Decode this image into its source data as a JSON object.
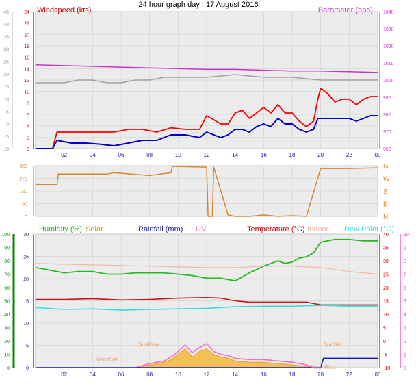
{
  "title": "24 hour graph day : 17 August 2016",
  "colors": {
    "wind_avg": "#0000cc",
    "wind_gust": "#ff0000",
    "baro": "#cc33cc",
    "grey": "#a0a0a0",
    "dir": "#d8862e",
    "humidity": "#22bb22",
    "solar": "#c0a000",
    "rainfall": "#1a1aaa",
    "uv": "#ff66cc",
    "temperature": "#cc1111",
    "indoor": "#f0b8a0",
    "dew": "#33dddd",
    "hum_axis": "#008800",
    "uv_axis": "#ff3399",
    "temp_axis": "#cc0000",
    "plot_bg": "#ececec",
    "grid": "#d4d4d4"
  },
  "x_ticks": [
    "02",
    "04",
    "06",
    "08",
    "10",
    "12",
    "14",
    "16",
    "18",
    "20",
    "22",
    "00"
  ],
  "chart_data": [
    {
      "type": "line",
      "panel": "wind",
      "title": "24 hour graph day : 17 August 2016",
      "left_label": "Windspeed (kts)",
      "right_label": "Barometer (hpa)",
      "outer_left_ticks": [
        "45",
        "40",
        "35",
        "30",
        "25",
        "20",
        "15",
        "10",
        "5",
        "0",
        "-5",
        "-10"
      ],
      "left_ticks": [
        "24",
        "22",
        "20",
        "18",
        "16",
        "14",
        "12",
        "10",
        "8",
        "6",
        "4",
        "2",
        "0"
      ],
      "right_ticks": [
        "1040",
        "1030",
        "1020",
        "1010",
        "1000",
        "990",
        "980",
        "970",
        "960"
      ],
      "left_ylim": [
        0,
        25
      ],
      "right_ylim": [
        958,
        1048
      ],
      "series": [
        {
          "name": "Windspeed (kts)",
          "axis": "left",
          "color": "wind_gust",
          "x": [
            0,
            1.2,
            1.5,
            2.5,
            3.5,
            4.5,
            5.5,
            6.5,
            7.5,
            8.5,
            9.5,
            10.5,
            11.5,
            12,
            13,
            13.5,
            14,
            14.5,
            15,
            15.5,
            16,
            16.5,
            17,
            17.5,
            18,
            18.5,
            19,
            19.5,
            19.8,
            20,
            20.5,
            21,
            21.5,
            22,
            22.5,
            23,
            23.5,
            24
          ],
          "y": [
            0,
            0,
            3,
            3,
            3,
            3,
            3,
            3.5,
            3.5,
            3,
            3.8,
            3.5,
            3.5,
            6,
            4.5,
            4.5,
            6.5,
            7,
            5.5,
            6.5,
            7.5,
            6.5,
            8,
            6.5,
            6.5,
            5,
            4,
            5,
            9,
            11,
            10,
            8.5,
            9,
            9,
            8,
            9,
            9.5,
            9.5
          ]
        },
        {
          "name": "Windspeed (kts)",
          "axis": "left",
          "color": "wind_avg",
          "x": [
            0,
            1.2,
            1.5,
            2.5,
            3.5,
            4.5,
            5.5,
            6.5,
            7.5,
            8.5,
            9.5,
            10.5,
            11.5,
            12,
            13,
            13.5,
            14,
            14.5,
            15,
            15.5,
            16,
            16.5,
            17,
            17.5,
            18,
            18.5,
            19,
            19.5,
            19.8,
            20,
            20.5,
            21,
            21.5,
            22,
            22.5,
            23,
            23.5,
            24
          ],
          "y": [
            0,
            0,
            1.5,
            1,
            1,
            0.8,
            0.5,
            1,
            1.5,
            1.5,
            2.5,
            2.5,
            2,
            3,
            2,
            2.5,
            3.5,
            3.5,
            3,
            4,
            4.5,
            4,
            5.5,
            4.5,
            4.5,
            3.5,
            3,
            3.5,
            5.5,
            5.5,
            5.5,
            5.5,
            5.5,
            5.5,
            5,
            5.5,
            6,
            6
          ]
        },
        {
          "name": "Barometer (hpa)",
          "axis": "right",
          "color": "baro",
          "x": [
            0,
            2,
            4,
            6,
            8,
            10,
            12,
            14,
            16,
            18,
            20,
            22,
            24
          ],
          "y": [
            1013,
            1012.5,
            1012,
            1011.5,
            1011,
            1010.5,
            1010,
            1010,
            1009.5,
            1009,
            1009,
            1008.5,
            1008
          ]
        },
        {
          "name": "",
          "axis": "left",
          "color": "grey",
          "x": [
            0,
            2,
            3,
            4,
            5,
            6,
            7,
            8,
            9,
            10,
            12,
            14,
            16,
            18,
            20,
            22,
            24
          ],
          "y": [
            12,
            12,
            12.5,
            12.5,
            12,
            12,
            12.5,
            12.5,
            13,
            13,
            13,
            13.5,
            13,
            13,
            12.5,
            12.5,
            12.5
          ]
        }
      ]
    },
    {
      "type": "line",
      "panel": "direction",
      "ticks": [
        "360",
        "270",
        "180",
        "90",
        "0"
      ],
      "right_letters": [
        "N",
        "W",
        "S",
        "E",
        "N"
      ],
      "ylim": [
        0,
        360
      ],
      "series": [
        {
          "name": "",
          "color": "dir",
          "x": [
            0,
            1.5,
            1.6,
            5,
            5.5,
            8,
            9.5,
            9.6,
            12,
            12.1,
            12.4,
            12.5,
            13.5,
            14,
            15,
            16,
            17,
            18,
            19,
            20,
            22,
            24
          ],
          "y": [
            225,
            225,
            300,
            300,
            310,
            290,
            310,
            355,
            350,
            0,
            0,
            350,
            10,
            0,
            0,
            10,
            0,
            5,
            0,
            340,
            340,
            345
          ]
        }
      ]
    },
    {
      "type": "line",
      "panel": "multi",
      "legend": [
        "Humidity (%)",
        "Solar",
        "Rainfall (mm)",
        "UV",
        "Temperature (°C)",
        "Indoor",
        "Dew Point (°C)"
      ],
      "hum_ticks": [
        "100",
        "90",
        "80",
        "70",
        "60",
        "50",
        "40",
        "30",
        "20",
        "10",
        "0"
      ],
      "rain_ticks": [
        "30",
        "25",
        "20",
        "15",
        "10",
        "5",
        "0"
      ],
      "temp_ticks": [
        "40",
        "35",
        "30",
        "25",
        "20",
        "15",
        "10",
        "5",
        "0",
        "-5",
        "-10"
      ],
      "uv_ticks": [
        "10",
        "9",
        "8",
        "7",
        "6",
        "5",
        "4",
        "3",
        "2",
        "1",
        "0"
      ],
      "hum_ylim": [
        0,
        100
      ],
      "temp_ylim": [
        -10,
        40
      ],
      "annotations": [
        {
          "text": "SunRise",
          "x": 7.2,
          "y": -2
        },
        {
          "text": "MoonSet",
          "x": 4.2,
          "y": -7.5
        },
        {
          "text": "SunSet",
          "x": 20.2,
          "y": -2
        },
        {
          "text": "MoonRise",
          "x": 19.3,
          "y": -10.5
        }
      ],
      "series": [
        {
          "name": "Humidity (%)",
          "axis": "hum",
          "color": "humidity",
          "x": [
            0,
            1,
            2,
            3,
            4,
            5,
            6,
            7,
            8,
            9,
            10,
            11,
            12,
            13,
            14,
            15,
            16,
            17,
            17.5,
            18,
            18.5,
            19,
            19.5,
            20,
            21,
            22,
            23,
            24
          ],
          "y": [
            75,
            73,
            71,
            72,
            72,
            70,
            70,
            71,
            71,
            71,
            70,
            69,
            67,
            67,
            65,
            71,
            76,
            80,
            78,
            79,
            82,
            83,
            86,
            94,
            96,
            96,
            95,
            95
          ]
        },
        {
          "name": "Indoor",
          "axis": "temp",
          "color": "indoor",
          "x": [
            0,
            4,
            8,
            12,
            14,
            16,
            18,
            20,
            22,
            24
          ],
          "y": [
            29,
            28.5,
            28,
            27.5,
            27.5,
            28,
            28,
            27.5,
            26,
            25
          ]
        },
        {
          "name": "Temperature (°C)",
          "axis": "temp",
          "color": "temperature",
          "x": [
            0,
            2,
            4,
            6,
            8,
            10,
            12,
            13,
            14,
            15,
            16,
            17,
            18,
            19,
            20,
            22,
            24
          ],
          "y": [
            15.5,
            15.5,
            15.8,
            15.3,
            15.5,
            16,
            16.2,
            16,
            15,
            14.5,
            14.5,
            14.5,
            14.5,
            14.5,
            13.5,
            13.5,
            13.5
          ]
        },
        {
          "name": "Dew Point (°C)",
          "axis": "temp",
          "color": "dew",
          "x": [
            0,
            2,
            4,
            6,
            8,
            10,
            12,
            14,
            16,
            18,
            20,
            22,
            24
          ],
          "y": [
            12.5,
            11.8,
            12,
            11.5,
            11.8,
            12,
            12.2,
            12.8,
            13,
            13,
            13.3,
            13,
            13
          ]
        },
        {
          "name": "Solar",
          "axis": "temp",
          "color": "solar",
          "x": [
            7,
            8,
            9,
            9.5,
            10,
            10.5,
            11,
            11.5,
            12,
            12.5,
            13,
            13.5,
            14,
            15,
            16,
            17,
            18,
            19,
            19.5
          ],
          "y": [
            -10,
            -9,
            -8,
            -7,
            -5,
            -3,
            -6,
            -4,
            -3,
            -5,
            -6,
            -6.5,
            -7.5,
            -8,
            -8,
            -8.5,
            -9,
            -9.5,
            -10
          ]
        },
        {
          "name": "UV",
          "axis": "temp",
          "color": "uv",
          "x": [
            7,
            8,
            9,
            9.5,
            10,
            10.5,
            11,
            11.5,
            12,
            12.5,
            13,
            13.5,
            14,
            15,
            16,
            17,
            18,
            19,
            19.5
          ],
          "y": [
            -10,
            -8.5,
            -7.5,
            -6,
            -4,
            -1.5,
            -4.5,
            -2.5,
            -1,
            -4,
            -5,
            -5.5,
            -6.5,
            -7,
            -7,
            -7.5,
            -8,
            -9,
            -10
          ]
        },
        {
          "name": "Rainfall (mm)",
          "axis": "temp",
          "color": "rainfall",
          "x": [
            0,
            18.5,
            20,
            20.2,
            24
          ],
          "y": [
            -10,
            -10,
            -10,
            -6.5,
            -6.5
          ]
        }
      ]
    }
  ]
}
